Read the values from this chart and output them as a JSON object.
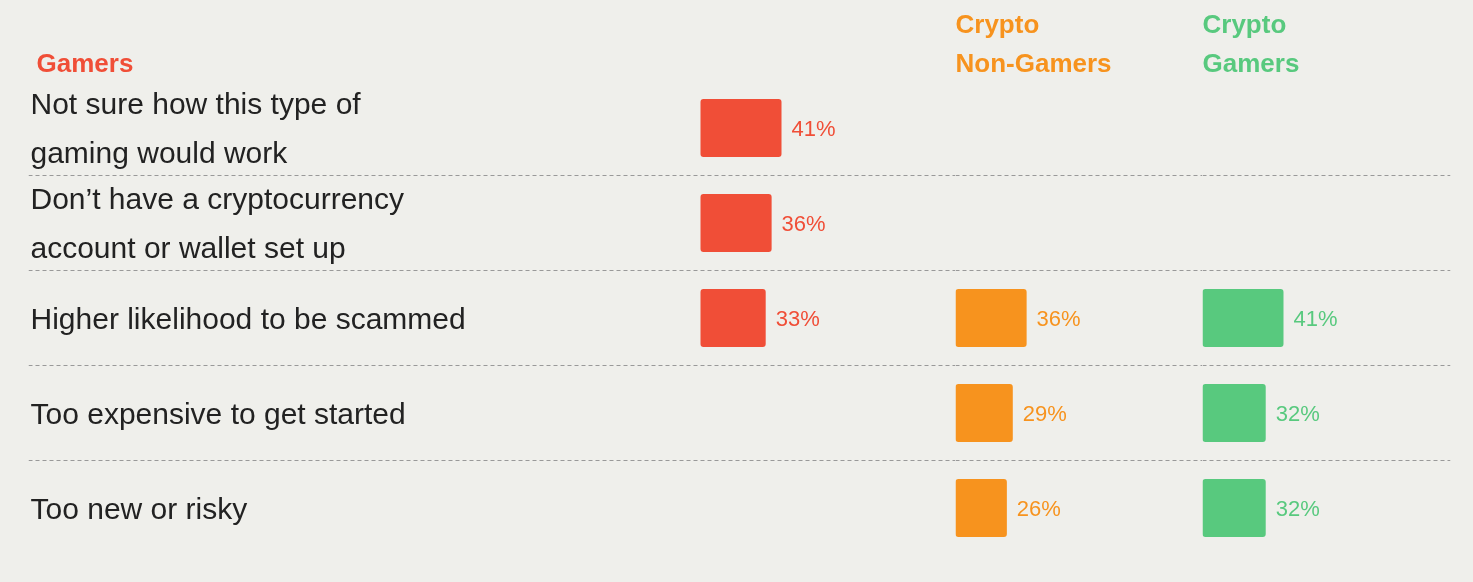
{
  "chart_data": [
    {
      "type": "bar",
      "orientation": "horizontal",
      "title": "Gamers",
      "grid": "y",
      "tick_labels": "y",
      "categories": [
        "Not sure how this type of\ngaming would work",
        "Don’t have a cryptocurrency\naccount or wallet set up",
        "Higher likelihood to be scammed",
        "Too expensive to get started",
        "Too new or risky"
      ],
      "series": [
        {
          "color": "#f04e37",
          "values": [
            41,
            36,
            33,
            null,
            null
          ],
          "value_labels": [
            "41%",
            "36%",
            "33%",
            null,
            null
          ]
        }
      ]
    },
    {
      "type": "bar",
      "orientation": "horizontal",
      "title": "Crypto\nNon-Gamers",
      "grid": "y",
      "tick_labels": false,
      "categories": [
        null,
        null,
        null,
        null,
        null
      ],
      "series": [
        {
          "color": "#f7931e",
          "values": [
            null,
            null,
            36,
            29,
            26
          ],
          "value_labels": [
            null,
            null,
            "36%",
            "29%",
            "26%"
          ]
        }
      ]
    },
    {
      "type": "bar",
      "orientation": "horizontal",
      "title": "Crypto\nGamers",
      "grid": "y",
      "tick_labels": false,
      "categories": [
        null,
        null,
        null,
        null,
        null
      ],
      "series": [
        {
          "color": "#58c97e",
          "values": [
            null,
            null,
            41,
            32,
            32
          ],
          "value_labels": [
            null,
            null,
            "41%",
            "32%",
            "32%"
          ]
        }
      ]
    }
  ]
}
